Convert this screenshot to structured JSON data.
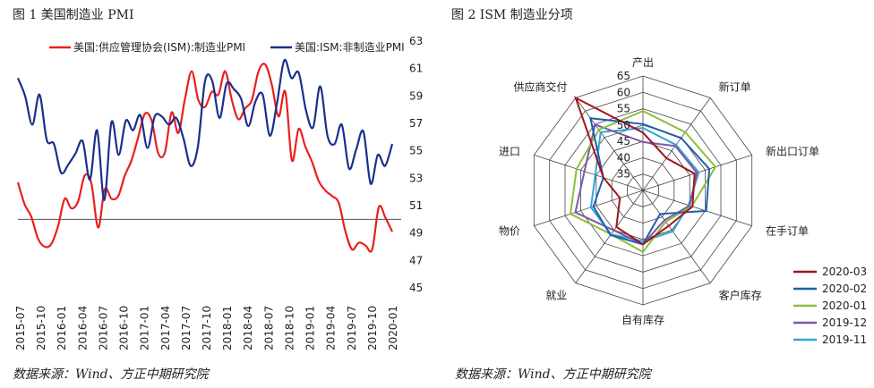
{
  "fig1": {
    "title": "图 1    美国制造业 PMI",
    "source": "数据来源：Wind、方正中期研究院"
  },
  "fig2": {
    "title": "图 2    ISM 制造业分项",
    "source": "数据来源：Wind、方正中期研究院"
  },
  "chart_data": [
    {
      "type": "line",
      "title": "美国制造业 PMI",
      "ylim": [
        45,
        63
      ],
      "yticks": [
        45,
        47,
        49,
        51,
        53,
        55,
        57,
        59,
        61,
        63
      ],
      "xticks": [
        "2015-07",
        "2015-10",
        "2016-01",
        "2016-04",
        "2016-07",
        "2016-10",
        "2017-01",
        "2017-04",
        "2017-07",
        "2017-10",
        "2018-01",
        "2018-04",
        "2018-07",
        "2018-10",
        "2019-01",
        "2019-04",
        "2019-07",
        "2019-10",
        "2020-01"
      ],
      "series": [
        {
          "name": "美国:供应管理协会(ISM):制造业PMI",
          "color": "#e8201e",
          "values": [
            52.7,
            51.1,
            50.2,
            48.6,
            48.0,
            48.2,
            49.5,
            51.5,
            50.8,
            51.3,
            53.2,
            52.6,
            49.4,
            52.2,
            51.5,
            51.7,
            53.2,
            54.3,
            56.0,
            57.7,
            57.2,
            54.8,
            54.9,
            57.8,
            56.3,
            58.8,
            60.8,
            58.7,
            58.2,
            59.3,
            59.1,
            60.8,
            58.7,
            57.3,
            58.1,
            58.7,
            60.8,
            61.3,
            59.8,
            57.5,
            59.3,
            54.3,
            56.6,
            55.3,
            54.2,
            52.8,
            52.1,
            51.7,
            51.2,
            49.1,
            47.8,
            48.3,
            48.1,
            47.8,
            50.9,
            50.1,
            49.1
          ]
        },
        {
          "name": "美国:ISM:非制造业PMI",
          "color": "#1a2f8c",
          "values": [
            60.3,
            59.0,
            56.9,
            59.1,
            55.8,
            55.5,
            53.4,
            54.0,
            54.8,
            55.7,
            52.9,
            56.5,
            51.4,
            57.1,
            54.7,
            57.2,
            56.5,
            57.6,
            55.2,
            57.5,
            57.5,
            56.9,
            57.4,
            55.9,
            53.9,
            55.3,
            60.1,
            60.1,
            57.4,
            59.9,
            59.5,
            58.8,
            56.8,
            58.6,
            59.1,
            56.1,
            58.5,
            61.6,
            60.3,
            60.7,
            58.0,
            56.7,
            59.7,
            56.1,
            55.5,
            56.9,
            53.7,
            55.1,
            56.4,
            52.6,
            54.7,
            53.9,
            55.5
          ]
        }
      ]
    },
    {
      "type": "radar",
      "title": "ISM 制造业分项",
      "axes": [
        "产出",
        "新订单",
        "新出口订单",
        "在手订单",
        "客户库存",
        "自有库存",
        "就业",
        "物价",
        "进口",
        "供应商交付"
      ],
      "rlim": [
        30,
        65
      ],
      "rticks": [
        35,
        40,
        45,
        50,
        55,
        60,
        65
      ],
      "series": [
        {
          "name": "2020-03",
          "color": "#a0141e",
          "values": [
            47.7,
            42.2,
            46.6,
            45.9,
            43.4,
            46.5,
            43.8,
            37.4,
            42.7,
            65.0
          ]
        },
        {
          "name": "2020-02",
          "color": "#1f5fae",
          "values": [
            50.3,
            49.8,
            51.3,
            50.3,
            38.9,
            46.5,
            46.9,
            45.9,
            42.7,
            57.3
          ]
        },
        {
          "name": "2020-01",
          "color": "#8cbe3c",
          "values": [
            54.3,
            52.0,
            53.3,
            45.7,
            41.8,
            48.8,
            46.6,
            53.3,
            51.3,
            52.9
          ]
        },
        {
          "name": "2019-12",
          "color": "#7b59a8",
          "values": [
            44.8,
            46.8,
            47.3,
            45.0,
            41.2,
            46.5,
            45.1,
            51.7,
            48.8,
            54.9
          ]
        },
        {
          "name": "2019-11",
          "color": "#33a4d6",
          "values": [
            49.1,
            47.2,
            47.9,
            44.6,
            45.5,
            45.5,
            46.6,
            46.7,
            45.3,
            52.0
          ]
        }
      ]
    }
  ]
}
